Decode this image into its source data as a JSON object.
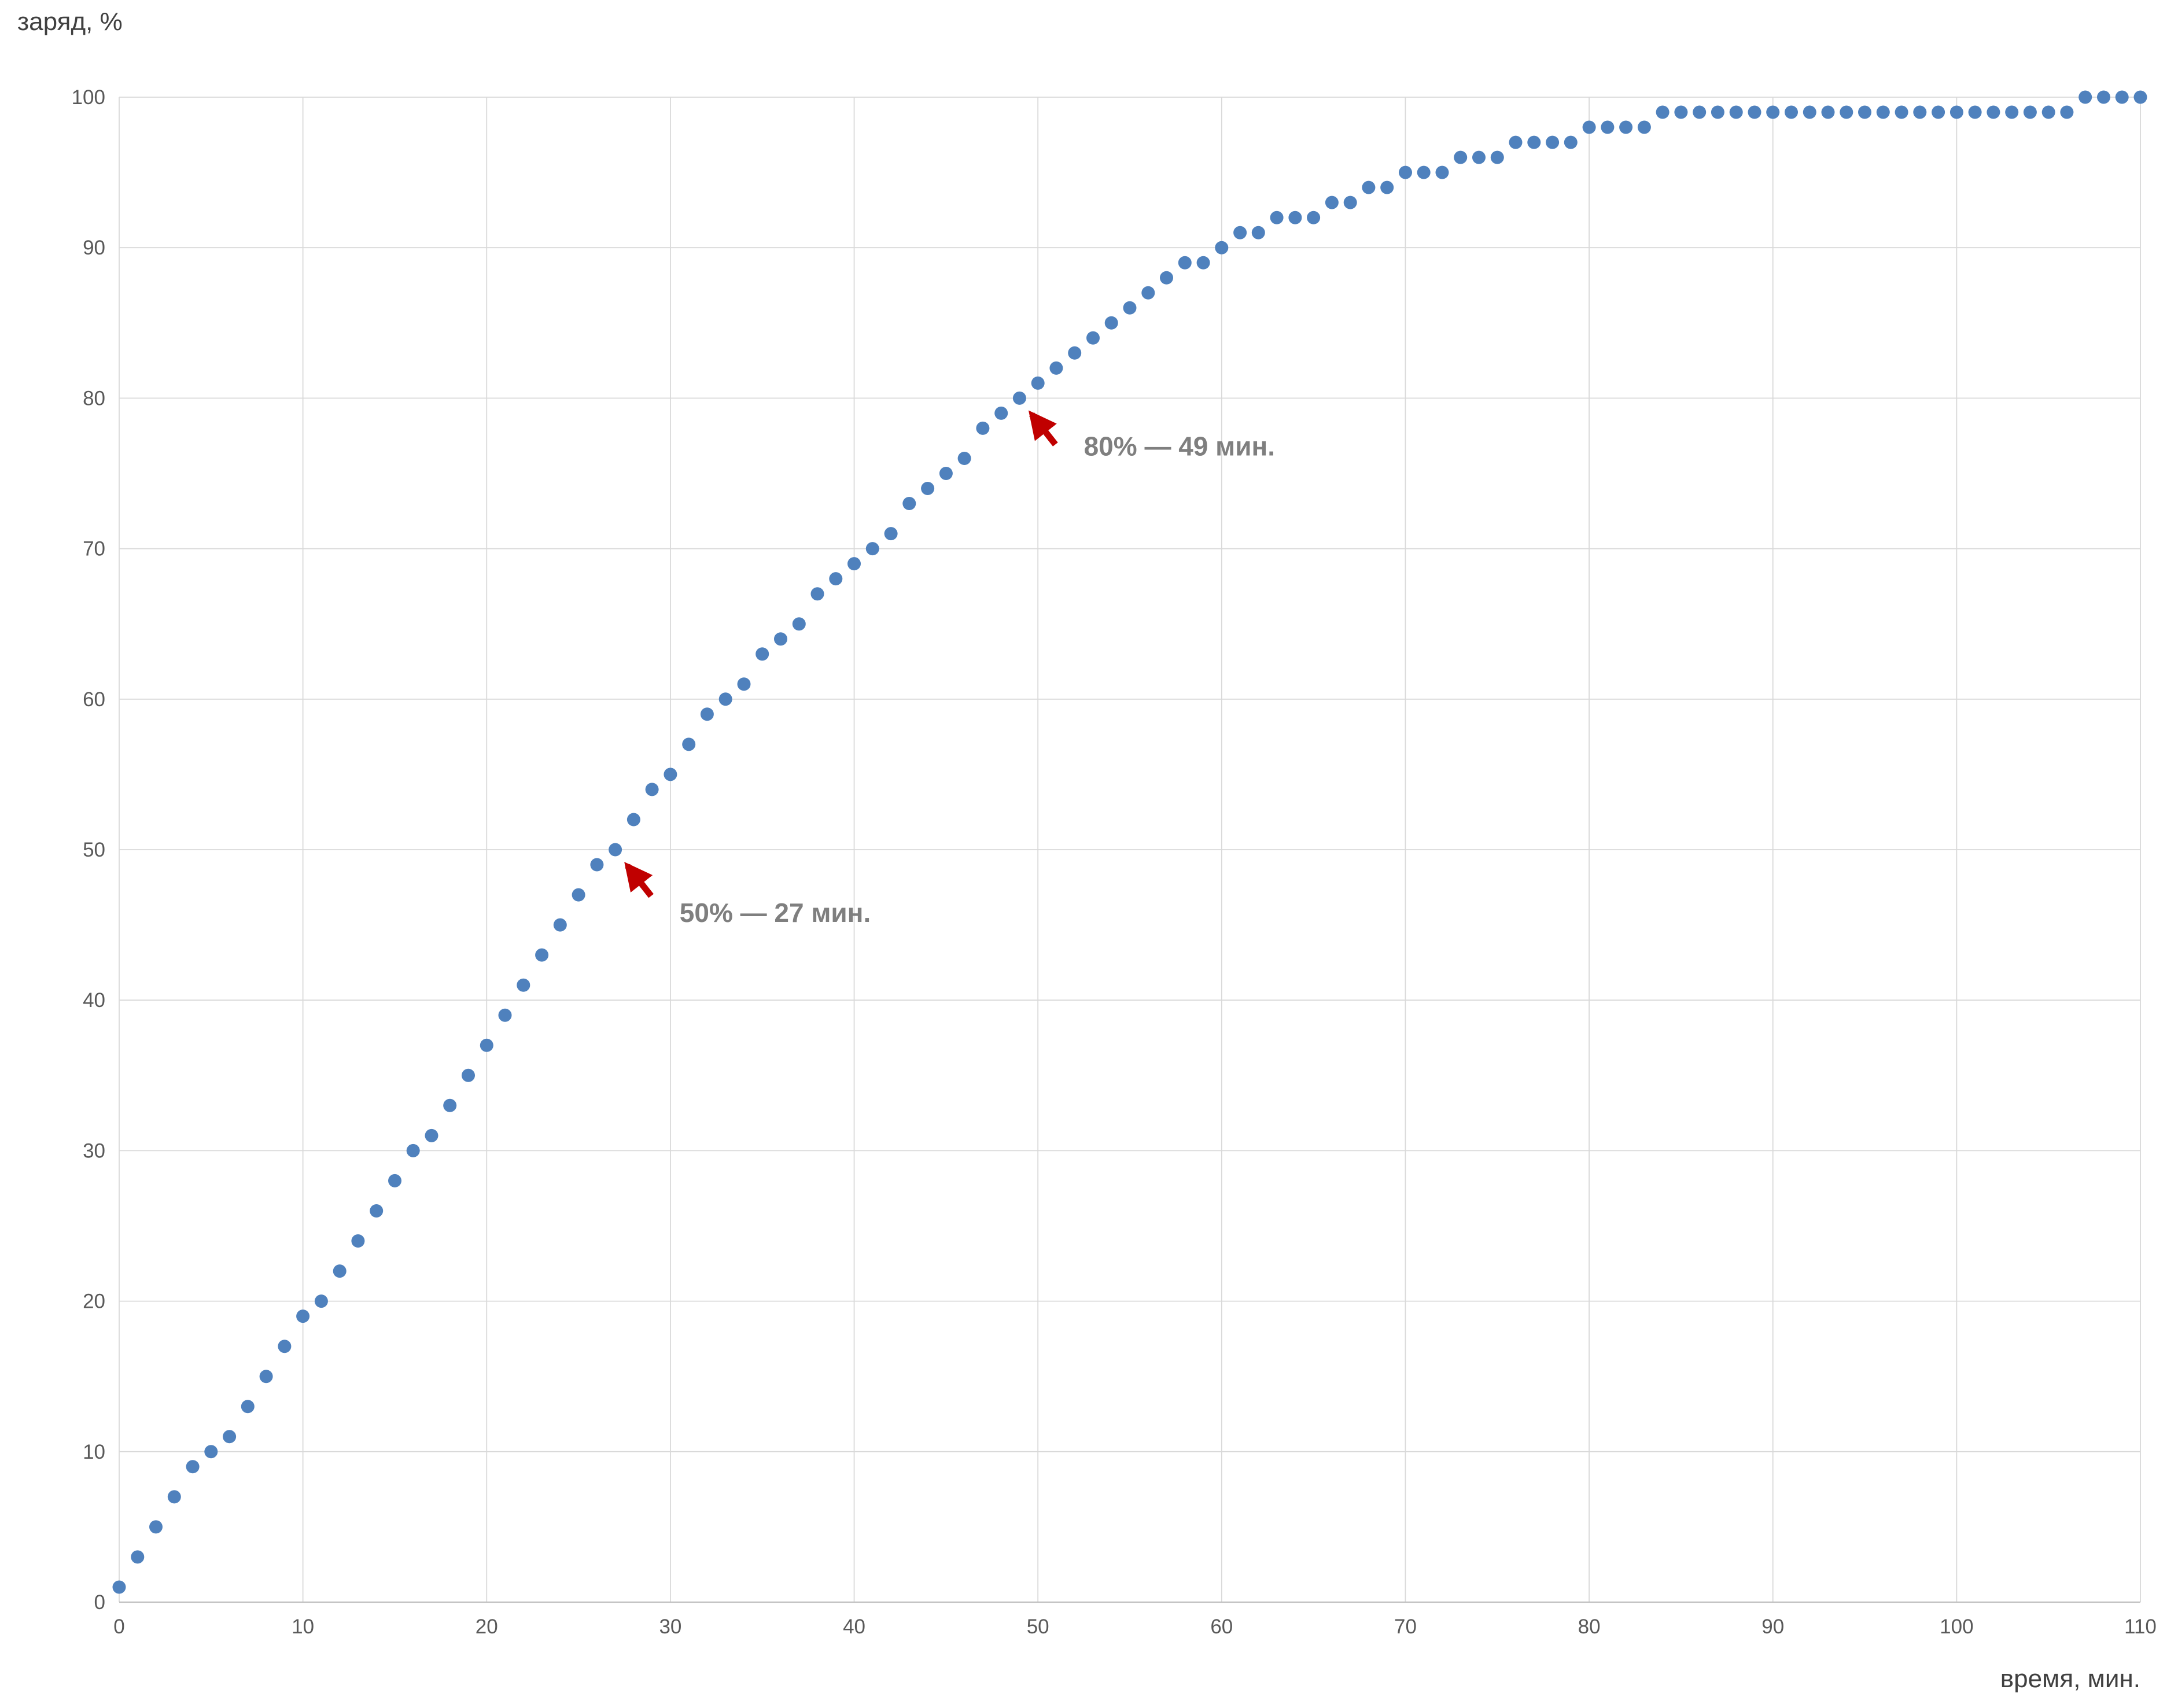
{
  "chart_data": {
    "type": "scatter",
    "title": "",
    "xlabel": "время, мин.",
    "ylabel": "заряд, %",
    "xlim": [
      0,
      110
    ],
    "ylim": [
      0,
      100
    ],
    "x_ticks": [
      0,
      10,
      20,
      30,
      40,
      50,
      60,
      70,
      80,
      90,
      100,
      110
    ],
    "y_ticks": [
      0,
      10,
      20,
      30,
      40,
      50,
      60,
      70,
      80,
      90,
      100
    ],
    "grid": true,
    "legend": "none",
    "colors": {
      "point": "#4f81bd",
      "grid": "#d9d9d9",
      "axis": "#bfbfbf",
      "tick_label": "#595959",
      "axis_title": "#404040",
      "annotation_text": "#7f7f7f",
      "annotation_arrow": "#c00000",
      "background": "#ffffff"
    },
    "series": [
      {
        "name": "заряд",
        "x": [
          0,
          1,
          2,
          3,
          4,
          5,
          6,
          7,
          8,
          9,
          10,
          11,
          12,
          13,
          14,
          15,
          16,
          17,
          18,
          19,
          20,
          21,
          22,
          23,
          24,
          25,
          26,
          27,
          28,
          29,
          30,
          31,
          32,
          33,
          34,
          35,
          36,
          37,
          38,
          39,
          40,
          41,
          42,
          43,
          44,
          45,
          46,
          47,
          48,
          49,
          50,
          51,
          52,
          53,
          54,
          55,
          56,
          57,
          58,
          59,
          60,
          61,
          62,
          63,
          64,
          65,
          66,
          67,
          68,
          69,
          70,
          71,
          72,
          73,
          74,
          75,
          76,
          77,
          78,
          79,
          80,
          81,
          82,
          83,
          84,
          85,
          86,
          87,
          88,
          89,
          90,
          91,
          92,
          93,
          94,
          95,
          96,
          97,
          98,
          99,
          100,
          101,
          102,
          103,
          104,
          105,
          106,
          107,
          108,
          109,
          110
        ],
        "y": [
          1,
          3,
          5,
          7,
          9,
          10,
          11,
          13,
          15,
          17,
          19,
          20,
          22,
          24,
          26,
          28,
          30,
          31,
          33,
          35,
          37,
          39,
          41,
          43,
          45,
          47,
          49,
          50,
          52,
          54,
          55,
          57,
          59,
          60,
          61,
          63,
          64,
          65,
          67,
          68,
          69,
          70,
          71,
          73,
          74,
          75,
          76,
          78,
          79,
          80,
          81,
          82,
          83,
          84,
          85,
          86,
          87,
          88,
          89,
          89,
          90,
          91,
          91,
          92,
          92,
          92,
          93,
          93,
          94,
          94,
          95,
          95,
          95,
          96,
          96,
          96,
          97,
          97,
          97,
          97,
          98,
          98,
          98,
          98,
          99,
          99,
          99,
          99,
          99,
          99,
          99,
          99,
          99,
          99,
          99,
          99,
          99,
          99,
          99,
          99,
          99,
          99,
          99,
          99,
          99,
          99,
          99,
          100,
          100,
          100,
          100
        ]
      }
    ],
    "annotations": [
      {
        "text": "50% — 27 мин.",
        "x": 27,
        "y": 50,
        "label_x": 30.5,
        "label_y": 45.2
      },
      {
        "text": "80% — 49 мин.",
        "x": 49,
        "y": 80,
        "label_x": 52.5,
        "label_y": 76.2
      }
    ]
  }
}
